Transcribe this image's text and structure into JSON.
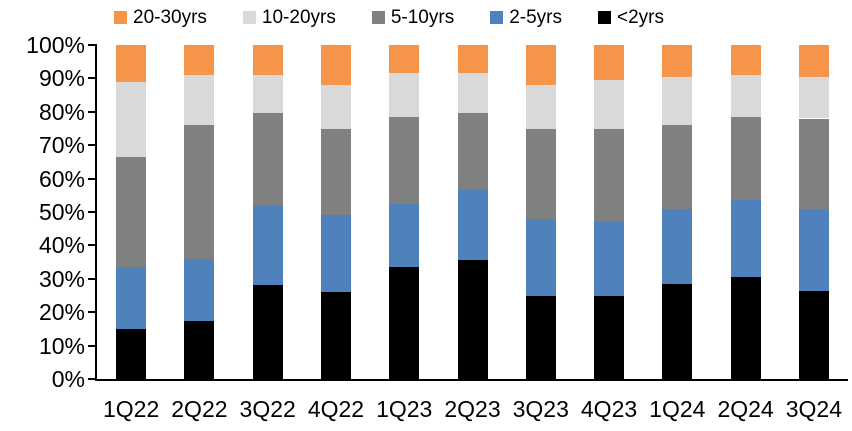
{
  "chart_data": {
    "type": "bar",
    "subtype": "stacked-100-percent",
    "categories": [
      "1Q22",
      "2Q22",
      "3Q22",
      "4Q22",
      "1Q23",
      "2Q23",
      "3Q23",
      "4Q23",
      "1Q24",
      "2Q24",
      "3Q24"
    ],
    "series": [
      {
        "name": "<2yrs",
        "color": "#000000",
        "values": [
          15,
          17.5,
          28,
          26,
          33.5,
          35.5,
          25,
          25,
          28.5,
          30.5,
          26.5
        ]
      },
      {
        "name": "2-5yrs",
        "color": "#4F81BD",
        "values": [
          18.5,
          18.5,
          24,
          23,
          19,
          21,
          23,
          22,
          22.5,
          23,
          24.5
        ]
      },
      {
        "name": "5-10yrs",
        "color": "#808080",
        "values": [
          33,
          40,
          27.5,
          26,
          26,
          23,
          27,
          28,
          25,
          25,
          27
        ]
      },
      {
        "name": "10-20yrs",
        "color": "#D9D9D9",
        "values": [
          22.5,
          15,
          11.5,
          13,
          13,
          12,
          13,
          14.5,
          14.5,
          12.5,
          12.5
        ]
      },
      {
        "name": "20-30yrs",
        "color": "#F6954A",
        "values": [
          11,
          9,
          9,
          12,
          8.5,
          8.5,
          12,
          10.5,
          9.5,
          9,
          9.5
        ]
      }
    ],
    "legend_order": [
      "20-30yrs",
      "10-20yrs",
      "5-10yrs",
      "2-5yrs",
      "<2yrs"
    ],
    "legend_position": "top",
    "ylim": [
      0,
      100
    ],
    "ytick_labels": [
      "0%",
      "10%",
      "20%",
      "30%",
      "40%",
      "50%",
      "60%",
      "70%",
      "80%",
      "90%",
      "100%"
    ],
    "grid": false,
    "axis_color": "#000000",
    "background_color": "#FFFFFF"
  }
}
